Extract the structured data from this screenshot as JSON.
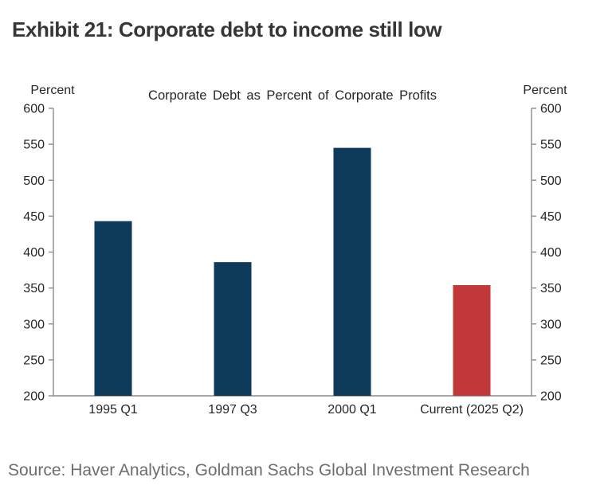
{
  "header": {
    "title": "Exhibit 21: Corporate debt to income still low"
  },
  "chart_data": {
    "type": "bar",
    "title": "Corporate Debt as Percent of Corporate Profits",
    "categories": [
      "1995 Q1",
      "1997 Q3",
      "2000 Q1",
      "Current (2025 Q2)"
    ],
    "values": [
      443,
      386,
      545,
      354
    ],
    "bar_colors": [
      "#0e3a5c",
      "#0e3a5c",
      "#0e3a5c",
      "#c2383a"
    ],
    "left_axis_label": "Percent",
    "right_axis_label": "Percent",
    "ylim": [
      200,
      600
    ],
    "yticks": [
      200,
      250,
      300,
      350,
      400,
      450,
      500,
      550,
      600
    ],
    "grid": false,
    "legend": "none"
  },
  "footer": {
    "source": "Source: Haver Analytics, Goldman Sachs Global Investment Research"
  },
  "colors": {
    "bar_navy": "#0e3a5c",
    "bar_red": "#c2383a",
    "axis": "#8c8c8c",
    "tick_label": "#262626",
    "title_text": "#363636",
    "source_text": "#6d6d6d",
    "background": "#ffffff"
  }
}
